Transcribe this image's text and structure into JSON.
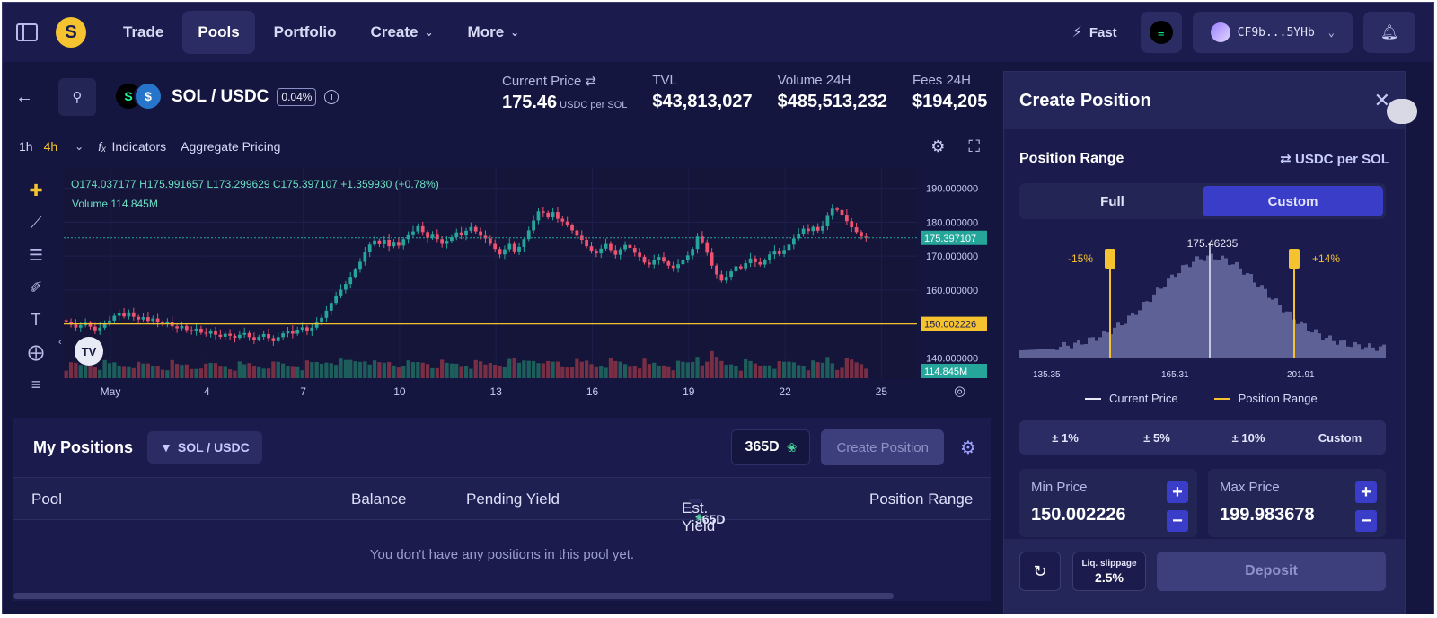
{
  "nav": {
    "items": [
      {
        "label": "Trade",
        "caret": false,
        "active": false
      },
      {
        "label": "Pools",
        "caret": false,
        "active": true
      },
      {
        "label": "Portfolio",
        "caret": false,
        "active": false
      },
      {
        "label": "Create",
        "caret": true,
        "active": false
      },
      {
        "label": "More",
        "caret": true,
        "active": false
      }
    ],
    "fast_label": "Fast",
    "wallet": "CF9b...5YHb"
  },
  "pool": {
    "pair": "SOL / USDC",
    "fee": "0.04%",
    "token_a": "S",
    "token_b": "$"
  },
  "stats": {
    "current_price_label": "Current Price",
    "current_price": "175.46",
    "current_price_unit": "USDC per SOL",
    "tvl_label": "TVL",
    "tvl": "$43,813,027",
    "volume_label": "Volume 24H",
    "volume": "$485,513,232",
    "fees_label": "Fees 24H",
    "fees": "$194,205"
  },
  "chart_toolbar": {
    "timeframes": [
      "1h",
      "4h"
    ],
    "active_timeframe": "4h",
    "indicators": "Indicators",
    "aggregate": "Aggregate Pricing"
  },
  "chart_data": {
    "type": "candlestick",
    "ohlc_legend": "O174.037177 H175.991657 L173.299629 C175.397107 +1.359930 (+0.78%)",
    "volume_legend": "Volume  114.845M",
    "y_ticks": [
      "190.000000",
      "180.000000",
      "170.000000",
      "160.000000",
      "150.000000",
      "140.000000"
    ],
    "ylim": [
      134,
      196
    ],
    "x_ticks": [
      "May",
      "4",
      "7",
      "10",
      "13",
      "16",
      "19",
      "22",
      "25"
    ],
    "last_price_label": "175.397107",
    "last_price": 175.397107,
    "hline_label": "150.002226",
    "hline": 150.002226,
    "volume_label": "114.845M",
    "closes": [
      150.5,
      149.8,
      148.9,
      149.6,
      150.3,
      149.2,
      148.1,
      148.9,
      150.2,
      151.0,
      152.4,
      153.1,
      152.2,
      153.4,
      152.1,
      151.3,
      152.0,
      150.9,
      151.6,
      150.4,
      149.9,
      150.6,
      149.3,
      148.7,
      149.4,
      148.2,
      147.9,
      148.6,
      147.4,
      147.1,
      148.0,
      146.8,
      146.2,
      147.1,
      146.5,
      145.9,
      146.8,
      147.3,
      146.1,
      145.4,
      146.2,
      147.0,
      145.8,
      144.9,
      146.1,
      147.2,
      148.0,
      147.1,
      148.3,
      149.0,
      147.8,
      148.9,
      150.4,
      151.8,
      153.9,
      156.2,
      158.4,
      160.1,
      161.8,
      163.9,
      166.0,
      168.3,
      171.1,
      173.4,
      174.6,
      173.5,
      174.8,
      172.9,
      174.2,
      173.1,
      175.0,
      176.2,
      177.3,
      178.8,
      177.1,
      175.4,
      176.3,
      175.0,
      173.6,
      174.5,
      175.6,
      177.0,
      176.1,
      177.5,
      178.6,
      177.3,
      176.0,
      175.2,
      173.6,
      172.1,
      170.5,
      172.0,
      173.6,
      171.4,
      172.7,
      175.0,
      177.6,
      180.5,
      183.2,
      182.8,
      181.4,
      183.0,
      181.0,
      180.2,
      179.1,
      177.6,
      176.0,
      174.8,
      172.9,
      171.6,
      170.8,
      172.2,
      173.6,
      171.8,
      170.4,
      172.0,
      173.3,
      172.4,
      171.0,
      169.8,
      168.1,
      167.5,
      168.8,
      169.7,
      168.4,
      167.2,
      166.5,
      167.6,
      168.8,
      170.2,
      172.1,
      175.8,
      174.1,
      171.0,
      167.2,
      164.6,
      162.8,
      163.9,
      165.5,
      167.0,
      166.4,
      167.9,
      169.3,
      168.2,
      167.5,
      168.8,
      170.5,
      171.6,
      170.6,
      171.8,
      173.4,
      175.2,
      176.6,
      178.1,
      177.4,
      178.6,
      177.5,
      178.8,
      182.1,
      184.0,
      183.6,
      182.2,
      180.3,
      178.5,
      177.1,
      175.8,
      175.4
    ]
  },
  "positions": {
    "title": "My Positions",
    "filter": "SOL / USDC",
    "period": "365D",
    "create_button": "Create Position",
    "columns": {
      "pool": "Pool",
      "balance": "Balance",
      "pending": "Pending Yield",
      "est_yield": "Est. Yield",
      "est_period": "365D",
      "range": "Position Range"
    },
    "empty_message": "You don't have any positions in this pool yet."
  },
  "create_panel": {
    "title": "Create Position",
    "range_label": "Position Range",
    "unit_toggle": "USDC per SOL",
    "modes": [
      "Full",
      "Custom"
    ],
    "active_mode": "Custom",
    "current_price_label": "175.46235",
    "lower_pct": "-15%",
    "upper_pct": "+14%",
    "axis_labels": [
      "135.35",
      "165.31",
      "201.91"
    ],
    "legend_current": "Current Price",
    "legend_range": "Position Range",
    "quick_ranges": [
      "± 1%",
      "± 5%",
      "± 10%",
      "Custom"
    ],
    "min_price_label": "Min Price",
    "min_price": "150.002226",
    "max_price_label": "Max Price",
    "max_price": "199.983678",
    "slippage_label": "Liq. slippage",
    "slippage_value": "2.5%",
    "deposit": "Deposit"
  },
  "colors": {
    "up": "#26a69a",
    "down": "#ef5370",
    "accent": "#3a3dc8",
    "range": "#f5c330",
    "background": "#15163f"
  }
}
